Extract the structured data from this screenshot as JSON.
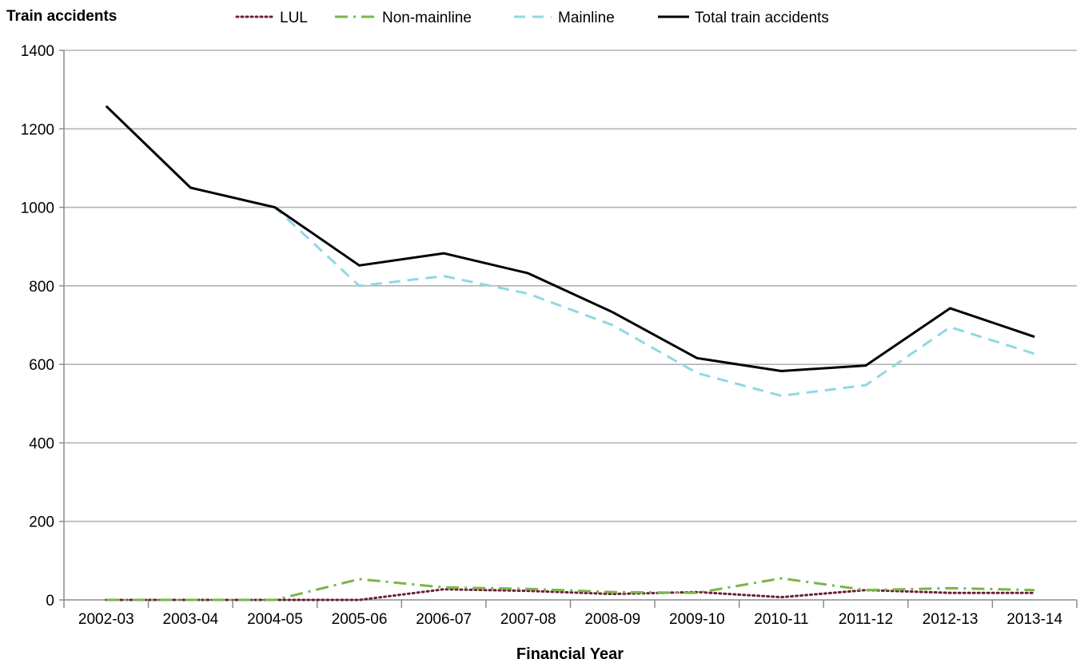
{
  "chart_data": {
    "type": "line",
    "ylabel": "Train accidents",
    "xlabel": "Financial Year",
    "ylim": [
      0,
      1400
    ],
    "yticks": [
      0,
      200,
      400,
      600,
      800,
      1000,
      1200,
      1400
    ],
    "grid": true,
    "legend_position": "top",
    "categories": [
      "2002-03",
      "2003-04",
      "2004-05",
      "2005-06",
      "2006-07",
      "2007-08",
      "2008-09",
      "2009-10",
      "2010-11",
      "2011-12",
      "2012-13",
      "2013-14"
    ],
    "series": [
      {
        "name": "LUL",
        "color": "#6b1f3a",
        "style": "dotted",
        "values": [
          0,
          0,
          0,
          0,
          27,
          23,
          15,
          20,
          7,
          25,
          18,
          18
        ]
      },
      {
        "name": "Non-mainline",
        "color": "#7ab648",
        "style": "dashdot",
        "values": [
          0,
          0,
          0,
          53,
          32,
          28,
          20,
          18,
          55,
          25,
          30,
          25
        ]
      },
      {
        "name": "Mainline",
        "color": "#8fd8e3",
        "style": "dashed",
        "values": [
          1258,
          1050,
          1000,
          800,
          825,
          780,
          700,
          578,
          520,
          547,
          695,
          627
        ]
      },
      {
        "name": "Total train accidents",
        "color": "#000000",
        "style": "solid",
        "values": [
          1258,
          1050,
          1000,
          852,
          883,
          832,
          733,
          616,
          583,
          597,
          743,
          670
        ]
      }
    ]
  }
}
